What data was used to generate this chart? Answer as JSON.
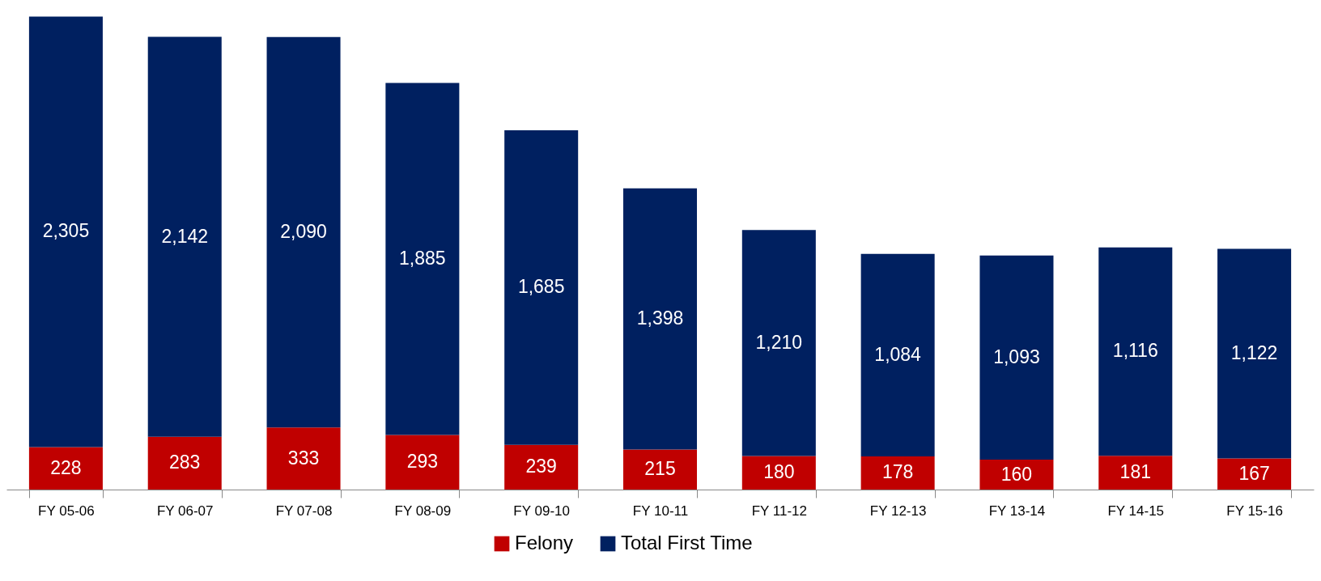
{
  "chart_data": {
    "type": "bar",
    "stacked": true,
    "legend": "bottom",
    "categories": [
      "FY 05-06",
      "FY 06-07",
      "FY 07-08",
      "FY 08-09",
      "FY 09-10",
      "FY 10-11",
      "FY 11-12",
      "FY 12-13",
      "FY 13-14",
      "FY 14-15",
      "FY 15-16"
    ],
    "series": [
      {
        "name": "Felony",
        "color": "#c00000",
        "values": [
          228,
          283,
          333,
          293,
          239,
          215,
          180,
          178,
          160,
          181,
          167
        ],
        "value_labels": [
          "228",
          "283",
          "333",
          "293",
          "239",
          "215",
          "180",
          "178",
          "160",
          "181",
          "167"
        ]
      },
      {
        "name": "Total First Time",
        "color": "#002060",
        "values": [
          2305,
          2142,
          2090,
          1885,
          1685,
          1398,
          1210,
          1084,
          1093,
          1116,
          1122
        ],
        "value_labels": [
          "2,305",
          "2,142",
          "2,090",
          "1,885",
          "1,685",
          "1,398",
          "1,210",
          "1,084",
          "1,093",
          "1,116",
          "1,122"
        ]
      }
    ]
  }
}
